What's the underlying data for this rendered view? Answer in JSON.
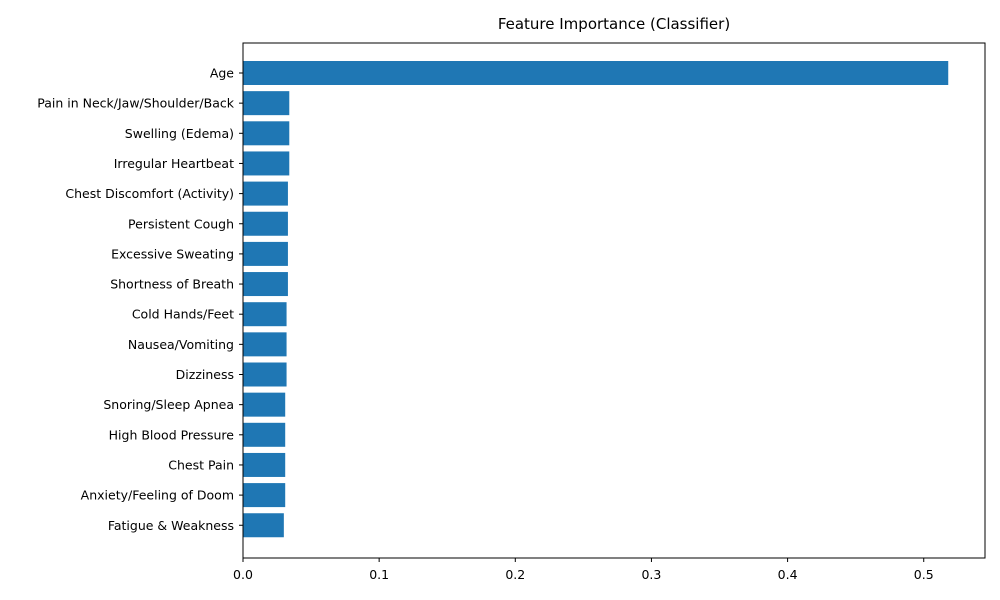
{
  "chart_data": {
    "type": "bar",
    "orientation": "horizontal",
    "title": "Feature Importance (Classifier)",
    "xlabel": "",
    "ylabel": "",
    "categories": [
      "Age",
      "Pain in Neck/Jaw/Shoulder/Back",
      "Swelling (Edema)",
      "Irregular Heartbeat",
      "Chest Discomfort (Activity)",
      "Persistent Cough",
      "Excessive Sweating",
      "Shortness of Breath",
      "Cold Hands/Feet",
      "Nausea/Vomiting",
      "Dizziness",
      "Snoring/Sleep Apnea",
      "High Blood Pressure",
      "Chest Pain",
      "Anxiety/Feeling of Doom",
      "Fatigue & Weakness"
    ],
    "values": [
      0.518,
      0.034,
      0.034,
      0.034,
      0.033,
      0.033,
      0.033,
      0.033,
      0.032,
      0.032,
      0.032,
      0.031,
      0.031,
      0.031,
      0.031,
      0.03
    ],
    "xlim": [
      0,
      0.545
    ],
    "xticks": [
      0.0,
      0.1,
      0.2,
      0.3,
      0.4,
      0.5
    ],
    "xtick_labels": [
      "0.0",
      "0.1",
      "0.2",
      "0.3",
      "0.4",
      "0.5"
    ],
    "bar_color": "#1f77b4",
    "grid": false,
    "legend": "none"
  }
}
